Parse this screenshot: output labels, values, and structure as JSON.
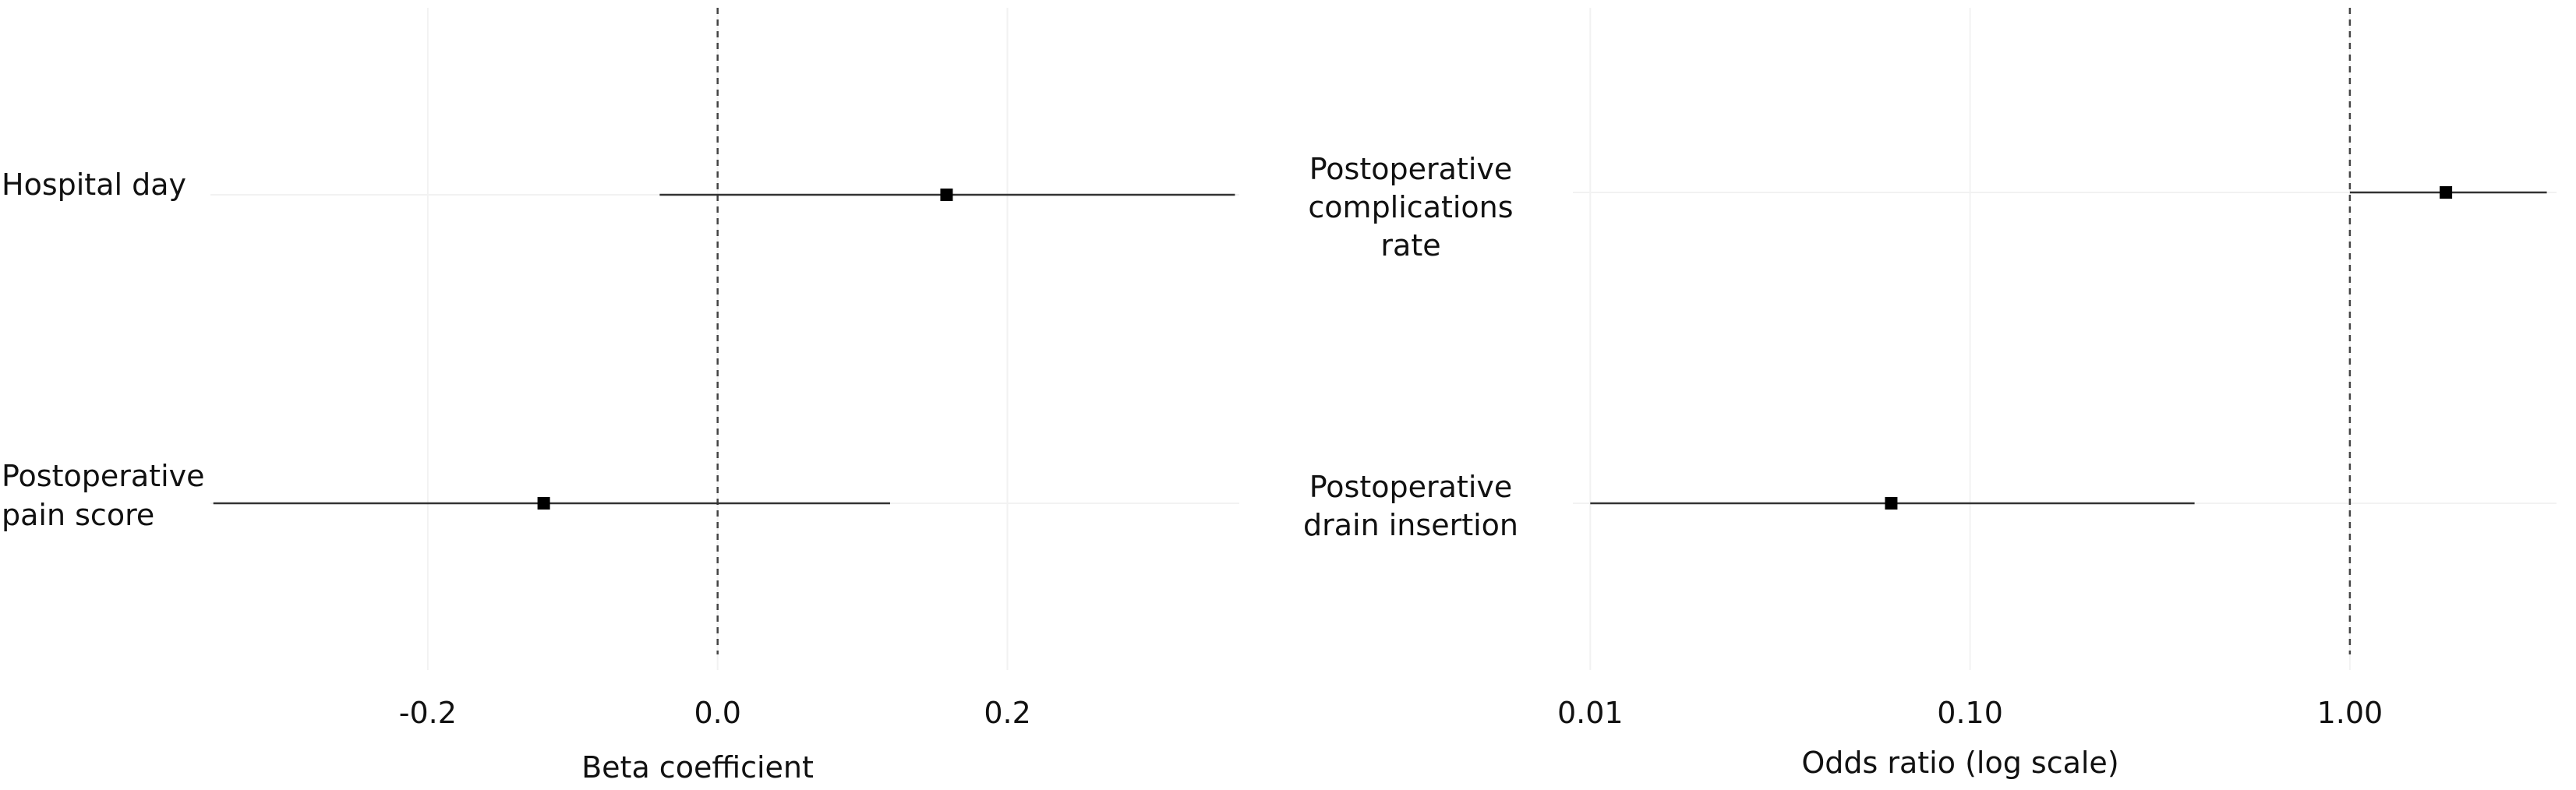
{
  "chart_data": [
    {
      "type": "forest",
      "xlabel": "Beta coefficient",
      "xlim": [
        -0.35,
        0.36
      ],
      "xticks": [
        -0.2,
        0.0,
        0.2
      ],
      "xtick_labels": [
        "-0.2",
        "0.0",
        "0.2"
      ],
      "reference_line": 0.0,
      "rows": [
        {
          "label": [
            "Hospital day"
          ],
          "estimate": 0.158,
          "lower": -0.04,
          "upper": 0.357
        },
        {
          "label": [
            "Postoperative",
            "pain score"
          ],
          "estimate": -0.12,
          "lower": -0.348,
          "upper": 0.119
        }
      ]
    },
    {
      "type": "forest",
      "xlabel": "Odds ratio (log scale)",
      "xscale": "log",
      "xlim": [
        0.009,
        3.5
      ],
      "xticks": [
        0.01,
        0.1,
        1.0
      ],
      "xtick_labels": [
        "0.01",
        "0.10",
        "1.00"
      ],
      "reference_line": 1.0,
      "rows": [
        {
          "label": [
            "Postoperative",
            "complications",
            "rate"
          ],
          "estimate": 1.79,
          "lower": 1.0,
          "upper": 3.3
        },
        {
          "label": [
            "Postoperative",
            "drain insertion"
          ],
          "estimate": 0.062,
          "lower": 0.01,
          "upper": 0.39
        }
      ]
    }
  ]
}
